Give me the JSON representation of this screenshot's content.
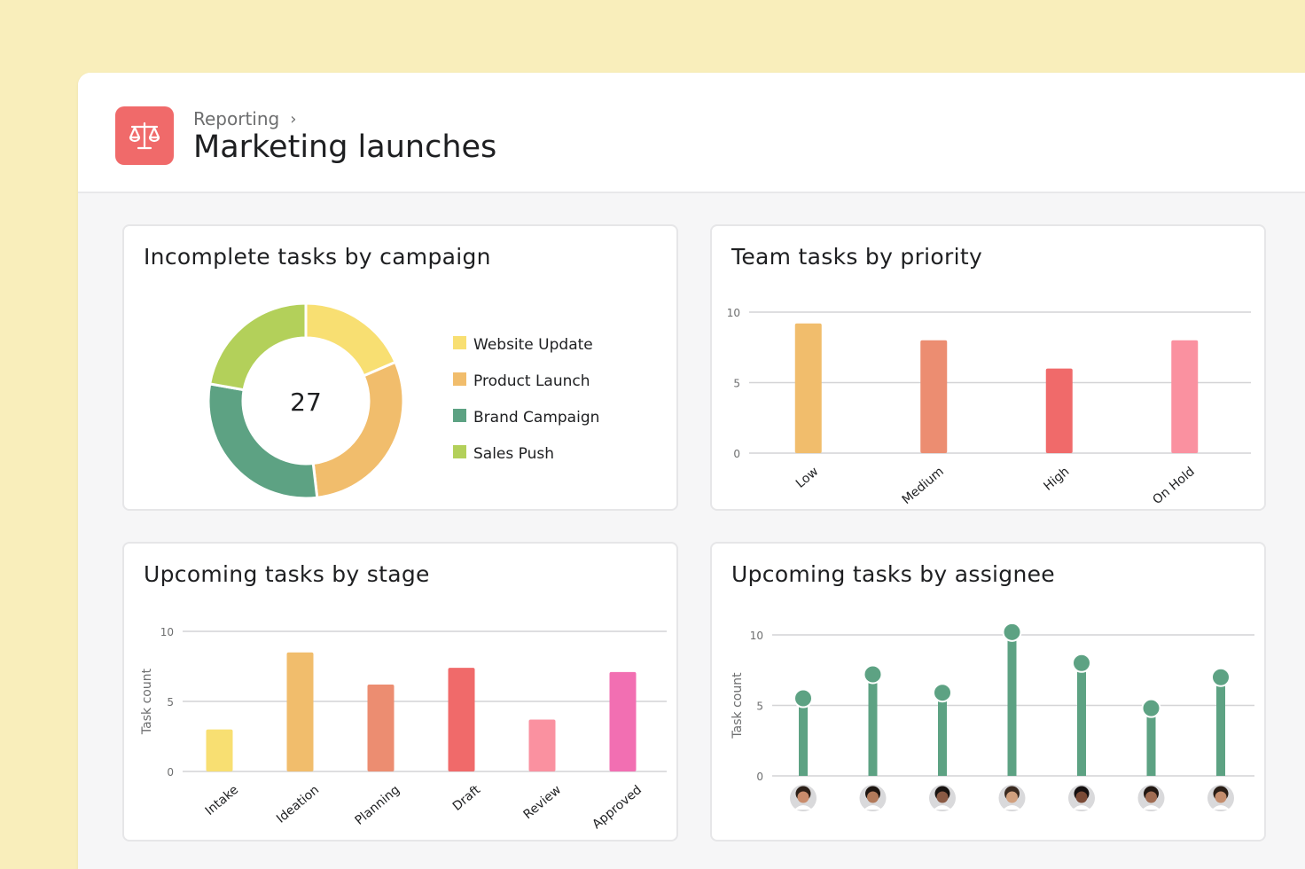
{
  "header": {
    "breadcrumb": "Reporting",
    "title": "Marketing launches",
    "icon": "scales-icon",
    "icon_color": "#f06a6a"
  },
  "cards": {
    "campaign": {
      "title": "Incomplete tasks by campaign",
      "total": "27"
    },
    "priority": {
      "title": "Team tasks by priority"
    },
    "stage": {
      "title": "Upcoming tasks by stage"
    },
    "assignee": {
      "title": "Upcoming tasks by assignee"
    }
  },
  "chart_data": [
    {
      "type": "pie",
      "title": "Incomplete tasks by campaign",
      "center_label": "27",
      "categories": [
        "Website Update",
        "Product Launch",
        "Brand Campaign",
        "Sales Push"
      ],
      "values": [
        5,
        8,
        8,
        6
      ],
      "colors": [
        "#f8df72",
        "#f1bd6c",
        "#5da283",
        "#b3d05a"
      ]
    },
    {
      "type": "bar",
      "title": "Team tasks by priority",
      "categories": [
        "Low",
        "Medium",
        "High",
        "On Hold"
      ],
      "values": [
        9.2,
        8,
        6,
        8
      ],
      "colors": [
        "#f1bd6c",
        "#ec8d71",
        "#f06a6a",
        "#fa91a0"
      ],
      "ylim": [
        0,
        10
      ],
      "yticks": [
        0,
        5,
        10
      ],
      "grid": true
    },
    {
      "type": "bar",
      "title": "Upcoming tasks by stage",
      "ylabel": "Task count",
      "categories": [
        "Intake",
        "Ideation",
        "Planning",
        "Draft",
        "Review",
        "Approved"
      ],
      "values": [
        3,
        8.5,
        6.2,
        7.4,
        3.7,
        7.1
      ],
      "colors": [
        "#f8df72",
        "#f1bd6c",
        "#ec8d71",
        "#f06a6a",
        "#fa91a0",
        "#f26fb2"
      ],
      "ylim": [
        0,
        10
      ],
      "yticks": [
        0,
        5,
        10
      ],
      "grid": true
    },
    {
      "type": "bar",
      "title": "Upcoming tasks by assignee",
      "ylabel": "Task count",
      "categories": [
        "avatar-1",
        "avatar-2",
        "avatar-3",
        "avatar-4",
        "avatar-5",
        "avatar-6",
        "avatar-7"
      ],
      "values": [
        5.5,
        7.2,
        5.9,
        10.2,
        8,
        4.8,
        7
      ],
      "color": "#5da283",
      "ylim": [
        0,
        10
      ],
      "yticks": [
        0,
        5,
        10
      ],
      "grid": true
    }
  ]
}
